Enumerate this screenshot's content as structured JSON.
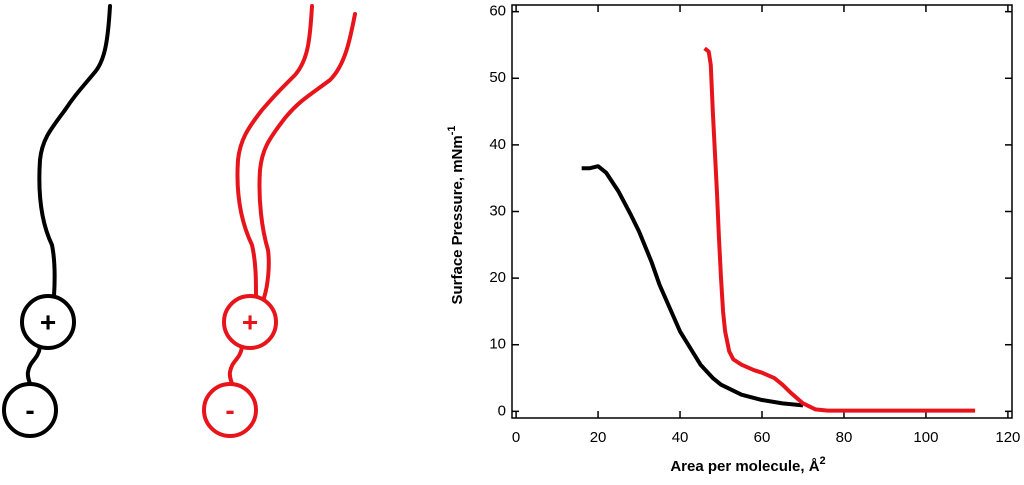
{
  "diagrams": [
    {
      "head": "+",
      "tail": "-",
      "color": "#000000"
    },
    {
      "head": "+",
      "tail": "-",
      "color": "#e8141b"
    }
  ],
  "chart_data": {
    "type": "line",
    "xlabel": "Area per molecule, Å",
    "xlabel_superscript": "2",
    "ylabel": "Surface Pressure, mNm",
    "ylabel_superscript": "-1",
    "xlim": [
      -1,
      121
    ],
    "ylim": [
      -1,
      61
    ],
    "xticks": [
      0,
      20,
      40,
      60,
      80,
      100,
      120
    ],
    "yticks": [
      0,
      10,
      20,
      30,
      40,
      50,
      60
    ],
    "series": [
      {
        "color": "#000000",
        "x": [
          16,
          18,
          20,
          22,
          25,
          28,
          30,
          33,
          35,
          38,
          40,
          43,
          45,
          48,
          50,
          55,
          60,
          65,
          70
        ],
        "values": [
          36.5,
          36.5,
          36.8,
          35.8,
          33,
          29.5,
          27,
          22.5,
          19,
          14.8,
          12,
          9,
          7,
          5,
          4,
          2.5,
          1.7,
          1.2,
          0.9
        ]
      },
      {
        "color": "#e8141b",
        "x": [
          46,
          47,
          47.5,
          48,
          48.5,
          49,
          49.5,
          50,
          50.5,
          51,
          52,
          53,
          55,
          58,
          60,
          63,
          65,
          67,
          70,
          73,
          76,
          80,
          90,
          100,
          112
        ],
        "values": [
          54.5,
          54,
          52,
          45,
          39,
          33,
          26,
          20,
          15,
          12,
          9,
          7.8,
          7,
          6.2,
          5.8,
          5,
          4,
          2.8,
          1.2,
          0.3,
          0.1,
          0.1,
          0.1,
          0.1,
          0.1
        ]
      }
    ]
  }
}
